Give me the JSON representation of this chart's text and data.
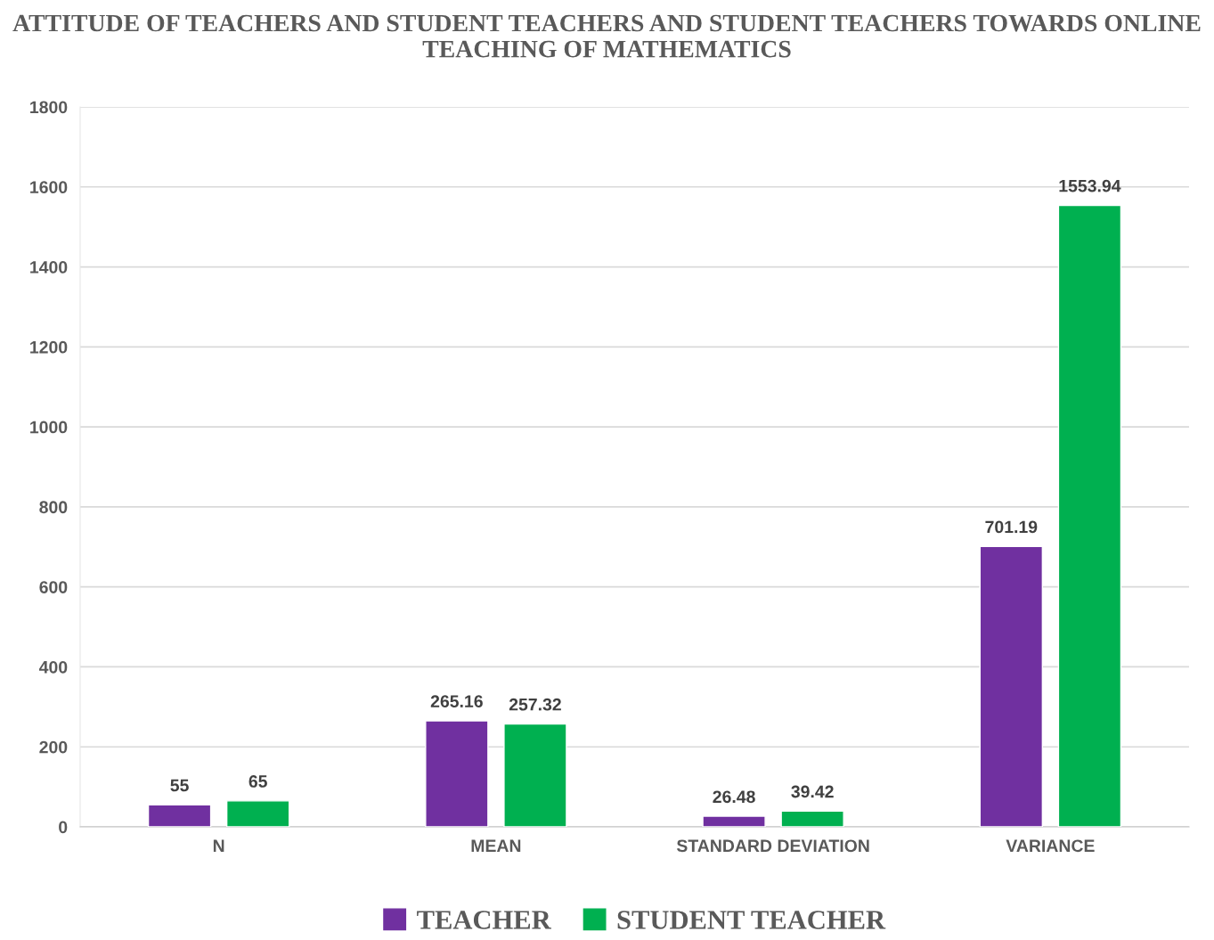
{
  "chart_data": {
    "type": "bar",
    "title": "ATTITUDE OF TEACHERS AND STUDENT TEACHERS AND STUDENT TEACHERS TOWARDS ONLINE TEACHING OF MATHEMATICS",
    "categories": [
      "N",
      "MEAN",
      "STANDARD DEVIATION",
      "VARIANCE"
    ],
    "series": [
      {
        "name": "TEACHER",
        "color": "#7030a0",
        "values": [
          55,
          265.16,
          26.48,
          701.19
        ]
      },
      {
        "name": "STUDENT TEACHER",
        "color": "#00b050",
        "values": [
          65,
          257.32,
          39.42,
          1553.94
        ]
      }
    ],
    "ylim": [
      0,
      1800
    ],
    "yticks": [
      0,
      200,
      400,
      600,
      800,
      1000,
      1200,
      1400,
      1600,
      1800
    ],
    "grid": "y",
    "legend": "bottom",
    "data_labels": true
  }
}
